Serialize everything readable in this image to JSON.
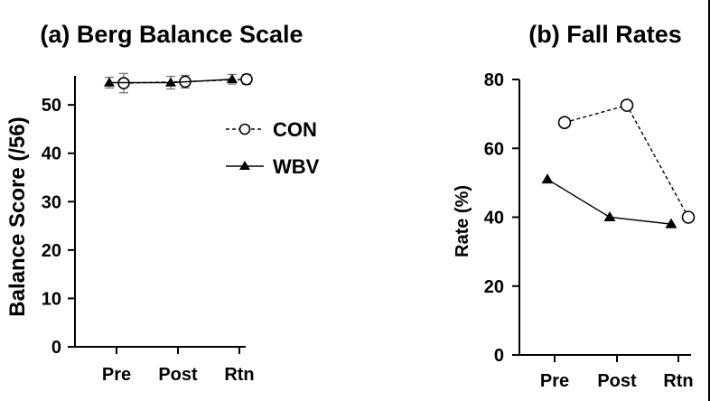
{
  "chart_data": [
    {
      "type": "line",
      "title": "(a) Berg Balance Scale",
      "xlabel": "",
      "ylabel": "Balance Score (/56)",
      "categories": [
        "Pre",
        "Post",
        "Rtn"
      ],
      "ylim": [
        0,
        56
      ],
      "yticks": [
        0,
        10,
        20,
        30,
        40,
        50
      ],
      "series": [
        {
          "name": "CON",
          "values": [
            54.5,
            54.8,
            55.3
          ],
          "error": [
            2.0,
            1.3,
            1.0
          ],
          "marker": "open-circle",
          "line": "dashed"
        },
        {
          "name": "WBV",
          "values": [
            54.6,
            54.6,
            55.3
          ],
          "error": [
            1.1,
            1.3,
            1.0
          ],
          "marker": "filled-triangle",
          "line": "solid"
        }
      ],
      "legend": "top-right",
      "grid": false
    },
    {
      "type": "line",
      "title": "(b) Fall Rates",
      "xlabel": "",
      "ylabel": "Rate (%)",
      "categories": [
        "Pre",
        "Post",
        "Rtn"
      ],
      "ylim": [
        0,
        80
      ],
      "yticks": [
        0,
        20,
        40,
        60,
        80
      ],
      "series": [
        {
          "name": "CON",
          "values": [
            67.5,
            72.5,
            40
          ],
          "marker": "open-circle",
          "line": "dashed"
        },
        {
          "name": "WBV",
          "values": [
            51,
            40,
            38
          ],
          "marker": "filled-triangle",
          "line": "solid"
        }
      ],
      "legend": "none",
      "grid": false
    }
  ]
}
